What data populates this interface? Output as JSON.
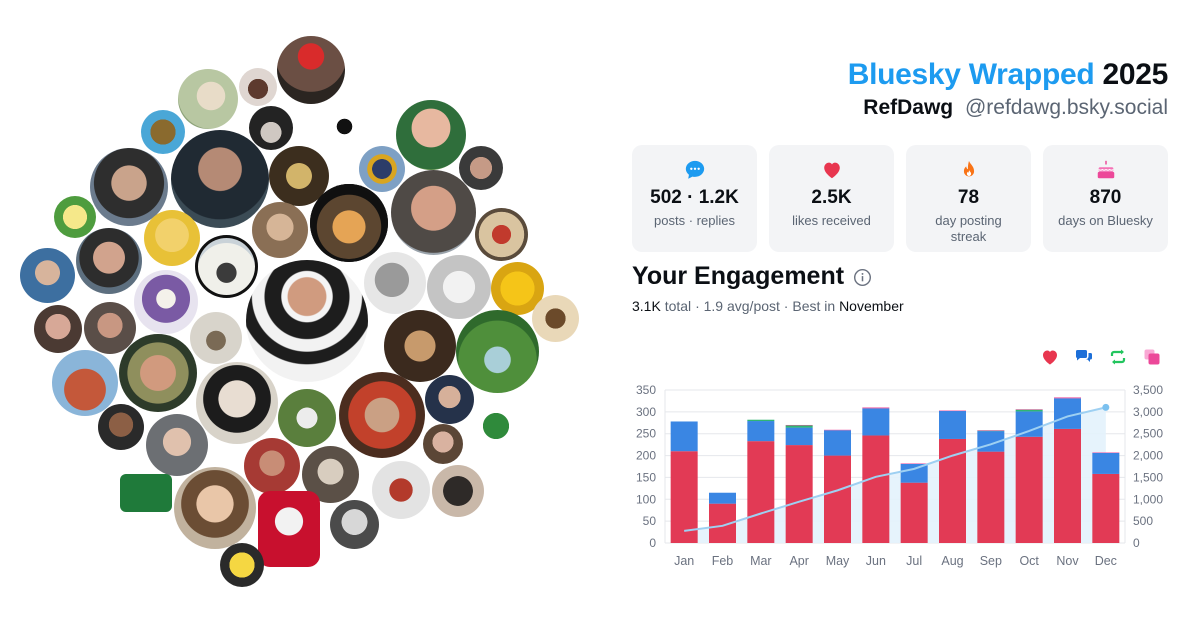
{
  "header": {
    "brand": "Bluesky Wrapped",
    "year": "2025",
    "display_name": "RefDawg",
    "handle": "@refdawg.bsky.social"
  },
  "stats": [
    {
      "icon": "chat-bubble-icon",
      "value": "502 · 1.2K",
      "label": "posts · replies",
      "color": "#1d9bf0"
    },
    {
      "icon": "heart-icon",
      "value": "2.5K",
      "label": "likes received",
      "color": "#e8364f"
    },
    {
      "icon": "flame-icon",
      "value": "78",
      "label": "day posting streak",
      "color": "#f97316"
    },
    {
      "icon": "cake-icon",
      "value": "870",
      "label": "days on Bluesky",
      "color": "#ec4899"
    }
  ],
  "engagement": {
    "title": "Your Engagement",
    "total": "3.1K",
    "total_word": "total",
    "sep1": "·",
    "avg": "1.9 avg/post",
    "sep2": "·",
    "best_prefix": "Best in",
    "best_month": "November"
  },
  "legend": [
    {
      "icon": "heart-icon",
      "color": "#e8364f"
    },
    {
      "icon": "reply-bubbles-icon",
      "color": "#1d6fd8"
    },
    {
      "icon": "repost-arrows-icon",
      "color": "#22c55e"
    },
    {
      "icon": "quote-squares-icon",
      "color": "#ec4899"
    }
  ],
  "colors": {
    "likes": "#e23a55",
    "replies": "#3a86e3",
    "reposts": "#2fb574",
    "quotes": "#ec4899",
    "cumulative_line": "#9ed0f2",
    "cumulative_fill": "#e3f2fc",
    "grid": "#e5e7eb",
    "axis_text": "#6b7280"
  },
  "chart_data": {
    "type": "bar",
    "stacked": true,
    "categories": [
      "Jan",
      "Feb",
      "Mar",
      "Apr",
      "May",
      "Jun",
      "Jul",
      "Aug",
      "Sep",
      "Oct",
      "Nov",
      "Dec"
    ],
    "series": [
      {
        "key": "likes",
        "values": [
          210,
          90,
          233,
          224,
          200,
          246,
          138,
          238,
          209,
          243,
          261,
          158
        ]
      },
      {
        "key": "replies",
        "values": [
          68,
          25,
          46,
          40,
          58,
          62,
          43,
          64,
          47,
          58,
          70,
          48
        ]
      },
      {
        "key": "reposts",
        "values": [
          0,
          0,
          3,
          5,
          0,
          0,
          0,
          0,
          1,
          4,
          0,
          0
        ]
      },
      {
        "key": "quotes",
        "values": [
          0,
          0,
          0,
          1,
          1,
          2,
          1,
          1,
          1,
          1,
          2,
          1
        ]
      }
    ],
    "cumulative": {
      "key": "cumulative",
      "axis": "right",
      "values": [
        278,
        393,
        675,
        945,
        1204,
        1514,
        1696,
        1999,
        2257,
        2563,
        2896,
        3103
      ]
    },
    "ylim": [
      0,
      350
    ],
    "yticks": [
      0,
      50,
      100,
      150,
      200,
      250,
      300,
      350
    ],
    "y2lim": [
      0,
      3500
    ],
    "y2ticks": [
      "0",
      "500",
      "1,000",
      "1,500",
      "2,000",
      "2,500",
      "3,000",
      "3,500"
    ],
    "grid": true,
    "legend_position": "top-right"
  }
}
